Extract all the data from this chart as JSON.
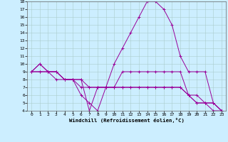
{
  "xlabel": "Windchill (Refroidissement éolien,°C)",
  "bg_color": "#cceeff",
  "line_color": "#990099",
  "grid_color": "#aacccc",
  "xlim": [
    -0.5,
    23.5
  ],
  "ylim": [
    4,
    18
  ],
  "xticks": [
    0,
    1,
    2,
    3,
    4,
    5,
    6,
    7,
    8,
    9,
    10,
    11,
    12,
    13,
    14,
    15,
    16,
    17,
    18,
    19,
    20,
    21,
    22,
    23
  ],
  "yticks": [
    4,
    5,
    6,
    7,
    8,
    9,
    10,
    11,
    12,
    13,
    14,
    15,
    16,
    17,
    18
  ],
  "series": [
    [
      9,
      10,
      9,
      9,
      8,
      8,
      8,
      4,
      7,
      7,
      7,
      9,
      9,
      9,
      9,
      9,
      9,
      9,
      9,
      6,
      5,
      5,
      4,
      4
    ],
    [
      9,
      10,
      9,
      9,
      8,
      8,
      6,
      5,
      4,
      7,
      10,
      12,
      14,
      16,
      18,
      18,
      17,
      15,
      11,
      9,
      9,
      9,
      5,
      4
    ],
    [
      9,
      9,
      9,
      9,
      8,
      8,
      8,
      7,
      7,
      7,
      7,
      7,
      7,
      7,
      7,
      7,
      7,
      7,
      7,
      6,
      6,
      5,
      5,
      4
    ],
    [
      9,
      9,
      9,
      8,
      8,
      8,
      7,
      7,
      7,
      7,
      7,
      7,
      7,
      7,
      7,
      7,
      7,
      7,
      7,
      6,
      5,
      5,
      5,
      4
    ]
  ]
}
